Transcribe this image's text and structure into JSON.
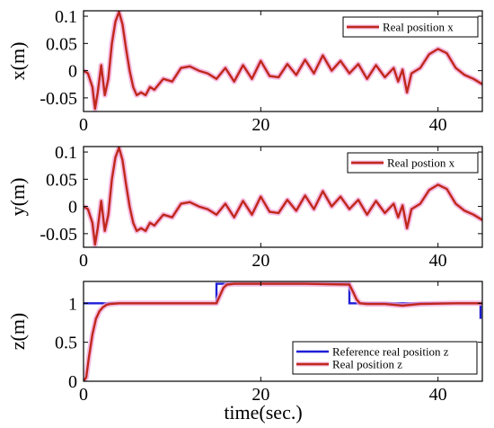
{
  "colors": {
    "real": "#c0281c",
    "real_glow": "#f2a6d8",
    "reference": "#1f1fd6",
    "axis": "#000000"
  },
  "x_axis_label": "time(sec.)",
  "chart_data": [
    {
      "type": "line",
      "ylabel": "x(m)",
      "xlim": [
        0,
        45
      ],
      "ylim": [
        -0.075,
        0.11
      ],
      "xticks": [
        0,
        20,
        40
      ],
      "yticks": [
        0.1,
        0.05,
        0,
        -0.05
      ],
      "ytick_labels": [
        "0.1",
        "0.05",
        "0",
        "-0.05"
      ],
      "legend_position": "top-right",
      "series": [
        {
          "name": "Real position x",
          "x": [
            0,
            0.5,
            1,
            1.3,
            1.6,
            2.0,
            2.4,
            2.8,
            3.2,
            3.6,
            4.0,
            4.4,
            4.8,
            5.2,
            5.6,
            6.0,
            6.5,
            7.0,
            7.5,
            8.0,
            9,
            10,
            11,
            12,
            13,
            14,
            15,
            16,
            17,
            18,
            19,
            20,
            21,
            22,
            23,
            24,
            25,
            26,
            27,
            28,
            29,
            30,
            31,
            32,
            33,
            34,
            35,
            35.5,
            36,
            36.5,
            37,
            38,
            39,
            40,
            41,
            42,
            43,
            44,
            45
          ],
          "y": [
            0,
            -0.005,
            -0.03,
            -0.07,
            -0.04,
            0.01,
            -0.045,
            -0.015,
            0.05,
            0.09,
            0.108,
            0.085,
            0.04,
            0,
            -0.03,
            -0.045,
            -0.04,
            -0.045,
            -0.03,
            -0.035,
            -0.015,
            -0.02,
            0.005,
            0.008,
            0,
            -0.005,
            -0.015,
            0.005,
            -0.02,
            0.01,
            -0.015,
            0.018,
            -0.01,
            -0.012,
            0.012,
            -0.008,
            0.02,
            -0.005,
            0.028,
            0.0,
            0.018,
            -0.005,
            0.012,
            -0.015,
            0.01,
            -0.012,
            0.005,
            -0.02,
            0.002,
            -0.04,
            -0.005,
            0.005,
            0.03,
            0.04,
            0.032,
            0.005,
            -0.008,
            -0.015,
            -0.025
          ]
        }
      ]
    },
    {
      "type": "line",
      "ylabel": "y(m)",
      "xlim": [
        0,
        45
      ],
      "ylim": [
        -0.075,
        0.11
      ],
      "xticks": [
        0,
        20,
        40
      ],
      "yticks": [
        0.1,
        0.05,
        0,
        -0.05
      ],
      "ytick_labels": [
        "0.1",
        "0.05",
        "0",
        "-0.05"
      ],
      "legend_position": "top-right",
      "series": [
        {
          "name": "Real postion x",
          "x": [
            0,
            0.5,
            1,
            1.3,
            1.6,
            2.0,
            2.4,
            2.8,
            3.2,
            3.6,
            4.0,
            4.4,
            4.8,
            5.2,
            5.6,
            6.0,
            6.5,
            7.0,
            7.5,
            8.0,
            9,
            10,
            11,
            12,
            13,
            14,
            15,
            16,
            17,
            18,
            19,
            20,
            21,
            22,
            23,
            24,
            25,
            26,
            27,
            28,
            29,
            30,
            31,
            32,
            33,
            34,
            35,
            35.5,
            36,
            36.5,
            37,
            38,
            39,
            40,
            41,
            42,
            43,
            44,
            45
          ],
          "y": [
            0,
            -0.005,
            -0.03,
            -0.07,
            -0.04,
            0.01,
            -0.045,
            -0.015,
            0.05,
            0.09,
            0.108,
            0.085,
            0.04,
            0,
            -0.03,
            -0.045,
            -0.04,
            -0.045,
            -0.03,
            -0.035,
            -0.015,
            -0.02,
            0.005,
            0.008,
            0,
            -0.005,
            -0.015,
            0.005,
            -0.02,
            0.01,
            -0.015,
            0.018,
            -0.01,
            -0.012,
            0.012,
            -0.008,
            0.02,
            -0.005,
            0.028,
            0.0,
            0.018,
            -0.005,
            0.012,
            -0.015,
            0.01,
            -0.012,
            0.005,
            -0.02,
            0.002,
            -0.04,
            -0.005,
            0.005,
            0.03,
            0.04,
            0.032,
            0.005,
            -0.008,
            -0.015,
            -0.025
          ]
        }
      ]
    },
    {
      "type": "line",
      "ylabel": "z(m)",
      "xlabel": "time(sec.)",
      "xlim": [
        0,
        45
      ],
      "ylim": [
        0,
        1.28
      ],
      "xticks": [
        0,
        20,
        40
      ],
      "yticks": [
        1,
        0.5,
        0
      ],
      "ytick_labels": [
        "1",
        "0.5",
        "0"
      ],
      "legend_position": "bottom-right",
      "series": [
        {
          "name": "Reference real position z",
          "color_key": "reference",
          "x": [
            0,
            15,
            15,
            30,
            30,
            44.8,
            44.8
          ],
          "y": [
            1,
            1,
            1.25,
            1.25,
            1,
            1,
            0.8
          ]
        },
        {
          "name": "Real position z",
          "color_key": "real",
          "x": [
            0,
            0.3,
            0.6,
            1.0,
            1.4,
            1.8,
            2.2,
            2.6,
            3.0,
            4,
            5,
            8,
            12,
            15,
            15.4,
            15.8,
            16.2,
            17,
            20,
            25,
            30,
            30.4,
            30.8,
            31.2,
            32,
            34,
            36,
            38,
            42,
            45
          ],
          "y": [
            0,
            0.05,
            0.3,
            0.6,
            0.8,
            0.9,
            0.95,
            0.98,
            0.99,
            1.0,
            1.0,
            1.0,
            1.0,
            1.0,
            1.1,
            1.2,
            1.24,
            1.25,
            1.25,
            1.25,
            1.24,
            1.15,
            1.05,
            1.0,
            0.99,
            0.99,
            0.97,
            0.99,
            1.0,
            1.0
          ]
        }
      ]
    }
  ]
}
